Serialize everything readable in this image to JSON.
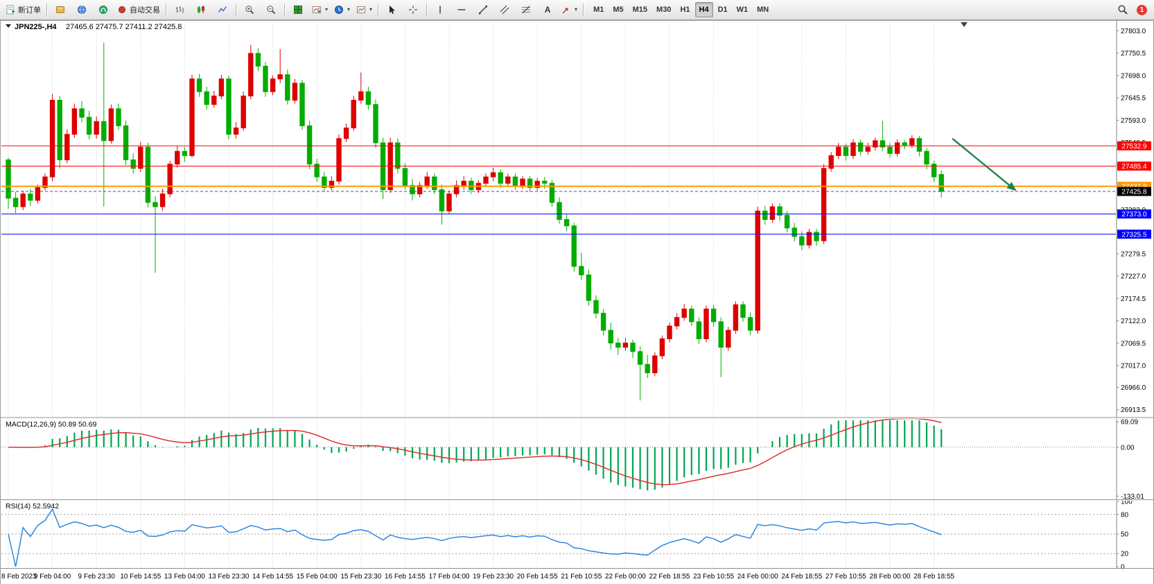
{
  "toolbar": {
    "new_order_label": "新订单",
    "autotrading_label": "自动交易",
    "timeframes": [
      "M1",
      "M5",
      "M15",
      "M30",
      "H1",
      "H4",
      "D1",
      "W1",
      "MN"
    ],
    "active_timeframe": "H4",
    "notification_count": "1"
  },
  "chart": {
    "symbol_label": "JPN225-,H4",
    "ohlc_text": "27465.6 27475.7 27411.2 27425.8"
  },
  "chart_data": [
    {
      "type": "candlestick",
      "title": "JPN225- H4",
      "symbol": "JPN225-",
      "timeframe": "H4",
      "y_range": [
        26900,
        27815
      ],
      "y_axis_labels": [
        "27803.0",
        "27750.5",
        "27698.0",
        "27645.5",
        "27593.0",
        "27540.5",
        "27488.0",
        "27435.5",
        "27383.0",
        "27330.5",
        "27279.5",
        "27227.0",
        "27174.5",
        "27122.0",
        "27069.5",
        "27017.0",
        "26966.0",
        "26913.5"
      ],
      "x_labels": [
        "8 Feb 2023",
        "9 Feb 04:00",
        "9 Feb 23:30",
        "10 Feb 14:55",
        "13 Feb 04:00",
        "13 Feb 23:30",
        "14 Feb 14:55",
        "15 Feb 04:00",
        "15 Feb 23:30",
        "16 Feb 14:55",
        "17 Feb 04:00",
        "19 Feb 23:30",
        "20 Feb 14:55",
        "21 Feb 10:55",
        "22 Feb 00:00",
        "22 Feb 18:55",
        "23 Feb 10:55",
        "24 Feb 00:00",
        "24 Feb 18:55",
        "27 Feb 10:55",
        "28 Feb 00:00",
        "28 Feb 18:55"
      ],
      "colors": {
        "up": "#dd0000",
        "down": "#00ad00",
        "background": "#ffffff",
        "grid": "#cfcfcf"
      },
      "levels": [
        {
          "price": 27532.9,
          "label": "27532.9",
          "color": "#ff0000",
          "width": 1
        },
        {
          "price": 27485.4,
          "label": "27485.4",
          "color": "#ff0000",
          "width": 1
        },
        {
          "price": 27437.9,
          "label": "27437.9",
          "color": "#ff9900",
          "width": 2
        },
        {
          "price": 27373.0,
          "label": "27373.0",
          "color": "#0000ff",
          "width": 1
        },
        {
          "price": 27325.5,
          "label": "27325.5",
          "color": "#0000ff",
          "width": 1
        }
      ],
      "current_price": {
        "price": 27425.8,
        "label": "27425.8",
        "color": "#000000"
      },
      "annotations": [
        {
          "type": "arrow",
          "color": "#1e8449",
          "from": [
            128.5,
            27550
          ],
          "to": [
            137,
            27430
          ]
        }
      ],
      "candles": [
        [
          27500,
          27505,
          27385,
          27410
        ],
        [
          27410,
          27425,
          27375,
          27390
        ],
        [
          27390,
          27428,
          27382,
          27420
        ],
        [
          27420,
          27432,
          27392,
          27405
        ],
        [
          27405,
          27442,
          27398,
          27435
        ],
        [
          27435,
          27468,
          27428,
          27460
        ],
        [
          27460,
          27655,
          27450,
          27640
        ],
        [
          27640,
          27650,
          27480,
          27500
        ],
        [
          27500,
          27572,
          27492,
          27560
        ],
        [
          27560,
          27632,
          27552,
          27620
        ],
        [
          27620,
          27638,
          27588,
          27600
        ],
        [
          27600,
          27615,
          27548,
          27560
        ],
        [
          27560,
          27602,
          27550,
          27590
        ],
        [
          27590,
          27775,
          27390,
          27545
        ],
        [
          27545,
          27630,
          27538,
          27620
        ],
        [
          27620,
          27632,
          27570,
          27580
        ],
        [
          27580,
          27592,
          27488,
          27500
        ],
        [
          27500,
          27515,
          27468,
          27480
        ],
        [
          27480,
          27542,
          27472,
          27530
        ],
        [
          27530,
          27540,
          27388,
          27400
        ],
        [
          27400,
          27415,
          27235,
          27390
        ],
        [
          27390,
          27432,
          27380,
          27420
        ],
        [
          27420,
          27498,
          27412,
          27490
        ],
        [
          27490,
          27532,
          27482,
          27520
        ],
        [
          27520,
          27530,
          27495,
          27510
        ],
        [
          27510,
          27700,
          27505,
          27690
        ],
        [
          27690,
          27702,
          27648,
          27660
        ],
        [
          27660,
          27672,
          27618,
          27630
        ],
        [
          27630,
          27662,
          27622,
          27650
        ],
        [
          27650,
          27700,
          27642,
          27690
        ],
        [
          27690,
          27698,
          27548,
          27560
        ],
        [
          27560,
          27588,
          27550,
          27575
        ],
        [
          27575,
          27660,
          27568,
          27650
        ],
        [
          27650,
          27770,
          27642,
          27750
        ],
        [
          27750,
          27762,
          27708,
          27720
        ],
        [
          27720,
          27730,
          27648,
          27660
        ],
        [
          27660,
          27698,
          27652,
          27690
        ],
        [
          27690,
          27760,
          27680,
          27700
        ],
        [
          27700,
          27712,
          27630,
          27640
        ],
        [
          27640,
          27690,
          27632,
          27680
        ],
        [
          27680,
          27688,
          27570,
          27580
        ],
        [
          27580,
          27592,
          27478,
          27490
        ],
        [
          27490,
          27502,
          27448,
          27460
        ],
        [
          27460,
          27472,
          27425,
          27435
        ],
        [
          27435,
          27462,
          27428,
          27450
        ],
        [
          27450,
          27560,
          27442,
          27550
        ],
        [
          27550,
          27585,
          27542,
          27575
        ],
        [
          27575,
          27650,
          27568,
          27640
        ],
        [
          27640,
          27705,
          27632,
          27660
        ],
        [
          27660,
          27672,
          27618,
          27630
        ],
        [
          27630,
          27642,
          27528,
          27540
        ],
        [
          27540,
          27552,
          27408,
          27430
        ],
        [
          27430,
          27552,
          27422,
          27540
        ],
        [
          27540,
          27550,
          27468,
          27480
        ],
        [
          27480,
          27492,
          27430,
          27440
        ],
        [
          27440,
          27455,
          27405,
          27420
        ],
        [
          27420,
          27448,
          27412,
          27440
        ],
        [
          27440,
          27472,
          27432,
          27460
        ],
        [
          27460,
          27468,
          27420,
          27430
        ],
        [
          27430,
          27442,
          27348,
          27380
        ],
        [
          27380,
          27428,
          27372,
          27420
        ],
        [
          27420,
          27452,
          27412,
          27440
        ],
        [
          27440,
          27462,
          27430,
          27450
        ],
        [
          27450,
          27458,
          27420,
          27430
        ],
        [
          27430,
          27452,
          27422,
          27445
        ],
        [
          27445,
          27468,
          27438,
          27460
        ],
        [
          27460,
          27482,
          27450,
          27470
        ],
        [
          27470,
          27478,
          27435,
          27445
        ],
        [
          27445,
          27468,
          27438,
          27460
        ],
        [
          27460,
          27468,
          27430,
          27440
        ],
        [
          27440,
          27462,
          27432,
          27455
        ],
        [
          27455,
          27462,
          27425,
          27435
        ],
        [
          27435,
          27458,
          27428,
          27450
        ],
        [
          27450,
          27460,
          27432,
          27445
        ],
        [
          27445,
          27452,
          27390,
          27400
        ],
        [
          27400,
          27412,
          27350,
          27360
        ],
        [
          27360,
          27372,
          27332,
          27345
        ],
        [
          27345,
          27352,
          27238,
          27250
        ],
        [
          27250,
          27282,
          27218,
          27230
        ],
        [
          27230,
          27242,
          27158,
          27170
        ],
        [
          27170,
          27182,
          27128,
          27140
        ],
        [
          27140,
          27150,
          27088,
          27100
        ],
        [
          27100,
          27118,
          27055,
          27070
        ],
        [
          27070,
          27082,
          27042,
          27060
        ],
        [
          27060,
          27082,
          27052,
          27070
        ],
        [
          27070,
          27078,
          27035,
          27050
        ],
        [
          27050,
          27062,
          26935,
          27020
        ],
        [
          27020,
          27042,
          26988,
          27000
        ],
        [
          27000,
          27048,
          26992,
          27040
        ],
        [
          27040,
          27088,
          27032,
          27080
        ],
        [
          27080,
          27118,
          27072,
          27110
        ],
        [
          27110,
          27140,
          27102,
          27130
        ],
        [
          27130,
          27162,
          27122,
          27150
        ],
        [
          27150,
          27158,
          27110,
          27120
        ],
        [
          27120,
          27130,
          27068,
          27080
        ],
        [
          27080,
          27158,
          27072,
          27150
        ],
        [
          27150,
          27160,
          27108,
          27120
        ],
        [
          27120,
          27130,
          26990,
          27060
        ],
        [
          27060,
          27108,
          27052,
          27100
        ],
        [
          27100,
          27168,
          27092,
          27160
        ],
        [
          27160,
          27168,
          27120,
          27130
        ],
        [
          27130,
          27142,
          27088,
          27100
        ],
        [
          27100,
          27390,
          27092,
          27380
        ],
        [
          27380,
          27392,
          27348,
          27360
        ],
        [
          27360,
          27398,
          27352,
          27390
        ],
        [
          27390,
          27398,
          27358,
          27370
        ],
        [
          27370,
          27380,
          27330,
          27340
        ],
        [
          27340,
          27352,
          27308,
          27320
        ],
        [
          27320,
          27332,
          27288,
          27300
        ],
        [
          27300,
          27338,
          27292,
          27330
        ],
        [
          27330,
          27338,
          27298,
          27310
        ],
        [
          27310,
          27490,
          27302,
          27480
        ],
        [
          27480,
          27518,
          27472,
          27510
        ],
        [
          27510,
          27540,
          27502,
          27530
        ],
        [
          27530,
          27538,
          27498,
          27510
        ],
        [
          27510,
          27548,
          27502,
          27540
        ],
        [
          27540,
          27548,
          27510,
          27520
        ],
        [
          27520,
          27540,
          27512,
          27530
        ],
        [
          27530,
          27552,
          27522,
          27545
        ],
        [
          27545,
          27592,
          27520,
          27530
        ],
        [
          27530,
          27540,
          27505,
          27515
        ],
        [
          27515,
          27548,
          27508,
          27540
        ],
        [
          27540,
          27546,
          27525,
          27535
        ],
        [
          27535,
          27558,
          27528,
          27550
        ],
        [
          27550,
          27556,
          27508,
          27520
        ],
        [
          27520,
          27528,
          27478,
          27490
        ],
        [
          27490,
          27498,
          27448,
          27460
        ],
        [
          27465.6,
          27475.7,
          27411.2,
          27425.8
        ]
      ]
    },
    {
      "type": "bar",
      "title": "MACD",
      "label": "MACD(12,26,9) 50.89 50.69",
      "params": [
        12,
        26,
        9
      ],
      "current": {
        "macd": 50.89,
        "signal": 50.69
      },
      "y_axis_labels": [
        "69.09",
        "0.00",
        "-133.01"
      ],
      "y_range": [
        -140,
        75
      ],
      "colors": {
        "histogram": "#00a651",
        "signal": "#e03131"
      },
      "derived_from": "candle closes"
    },
    {
      "type": "line",
      "title": "RSI",
      "label": "RSI(14) 52.5942",
      "period": 14,
      "current": 52.5942,
      "levels": [
        80,
        50,
        20
      ],
      "y_axis_labels": [
        "100",
        "80",
        "50",
        "20",
        "0"
      ],
      "y_range": [
        0,
        100
      ],
      "colors": {
        "line": "#2e86de"
      },
      "derived_from": "candle closes"
    }
  ]
}
